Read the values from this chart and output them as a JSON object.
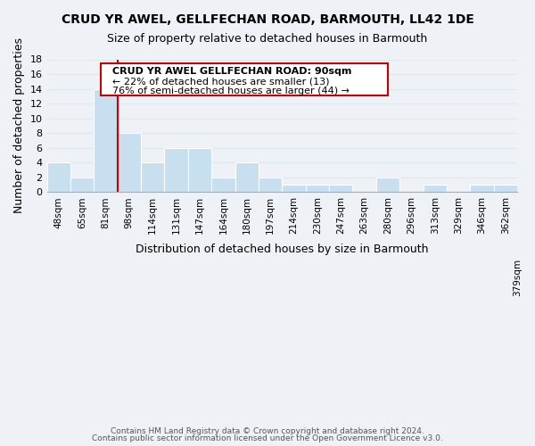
{
  "title": "CRUD YR AWEL, GELLFECHAN ROAD, BARMOUTH, LL42 1DE",
  "subtitle": "Size of property relative to detached houses in Barmouth",
  "xlabel": "Distribution of detached houses by size in Barmouth",
  "ylabel": "Number of detached properties",
  "bar_color": "#c8dff0",
  "bar_values": [
    4,
    2,
    14,
    8,
    4,
    6,
    6,
    2,
    4,
    2,
    1,
    1,
    1,
    0,
    2,
    0,
    1,
    0,
    1,
    1
  ],
  "bin_labels": [
    "48sqm",
    "65sqm",
    "81sqm",
    "98sqm",
    "114sqm",
    "131sqm",
    "147sqm",
    "164sqm",
    "180sqm",
    "197sqm",
    "214sqm",
    "230sqm",
    "247sqm",
    "263sqm",
    "280sqm",
    "296sqm",
    "313sqm",
    "329sqm",
    "346sqm",
    "362sqm"
  ],
  "ylim": [
    0,
    18
  ],
  "yticks": [
    0,
    2,
    4,
    6,
    8,
    10,
    12,
    14,
    16,
    18
  ],
  "property_line_x": 2.5,
  "property_line_color": "#cc0000",
  "annotation_text_line1": "CRUD YR AWEL GELLFECHAN ROAD: 90sqm",
  "annotation_text_line2": "← 22% of detached houses are smaller (13)",
  "annotation_text_line3": "76% of semi-detached houses are larger (44) →",
  "footer_line1": "Contains HM Land Registry data © Crown copyright and database right 2024.",
  "footer_line2": "Contains public sector information licensed under the Open Government Licence v3.0.",
  "grid_color": "#dde8f0",
  "background_color": "#eef2f7"
}
